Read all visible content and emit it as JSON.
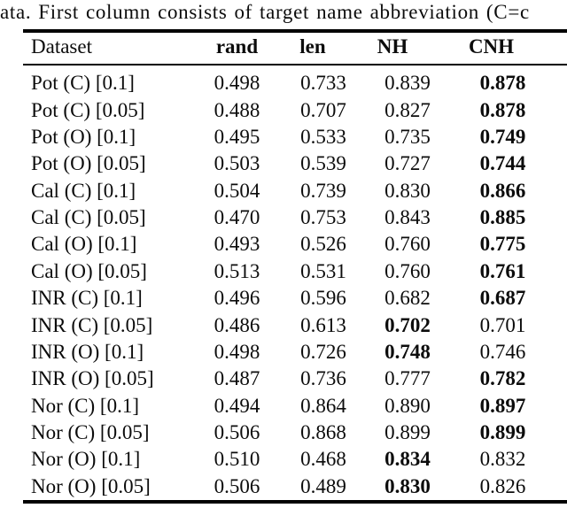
{
  "caption": "ata. First column consists of target name abbreviation (C=c",
  "columns": [
    {
      "key": "dataset",
      "label": "Dataset",
      "bold": false
    },
    {
      "key": "rand",
      "label": "rand",
      "bold": true
    },
    {
      "key": "len",
      "label": "len",
      "bold": true
    },
    {
      "key": "nh",
      "label": "NH",
      "bold": true
    },
    {
      "key": "cnh",
      "label": "CNH",
      "bold": true
    }
  ],
  "rows": [
    {
      "dataset": "Pot (C) [0.1]",
      "rand": "0.498",
      "len": "0.733",
      "nh": "0.839",
      "cnh": "0.878",
      "bold": "cnh"
    },
    {
      "dataset": "Pot (C) [0.05]",
      "rand": "0.488",
      "len": "0.707",
      "nh": "0.827",
      "cnh": "0.878",
      "bold": "cnh"
    },
    {
      "dataset": "Pot (O) [0.1]",
      "rand": "0.495",
      "len": "0.533",
      "nh": "0.735",
      "cnh": "0.749",
      "bold": "cnh"
    },
    {
      "dataset": "Pot (O) [0.05]",
      "rand": "0.503",
      "len": "0.539",
      "nh": "0.727",
      "cnh": "0.744",
      "bold": "cnh"
    },
    {
      "dataset": "Cal (C) [0.1]",
      "rand": "0.504",
      "len": "0.739",
      "nh": "0.830",
      "cnh": "0.866",
      "bold": "cnh"
    },
    {
      "dataset": "Cal (C) [0.05]",
      "rand": "0.470",
      "len": "0.753",
      "nh": "0.843",
      "cnh": "0.885",
      "bold": "cnh"
    },
    {
      "dataset": "Cal (O) [0.1]",
      "rand": "0.493",
      "len": "0.526",
      "nh": "0.760",
      "cnh": "0.775",
      "bold": "cnh"
    },
    {
      "dataset": "Cal (O) [0.05]",
      "rand": "0.513",
      "len": "0.531",
      "nh": "0.760",
      "cnh": "0.761",
      "bold": "cnh"
    },
    {
      "dataset": "INR (C) [0.1]",
      "rand": "0.496",
      "len": "0.596",
      "nh": "0.682",
      "cnh": "0.687",
      "bold": "cnh"
    },
    {
      "dataset": "INR (C) [0.05]",
      "rand": "0.486",
      "len": "0.613",
      "nh": "0.702",
      "cnh": "0.701",
      "bold": "nh"
    },
    {
      "dataset": "INR (O) [0.1]",
      "rand": "0.498",
      "len": "0.726",
      "nh": "0.748",
      "cnh": "0.746",
      "bold": "nh"
    },
    {
      "dataset": "INR (O) [0.05]",
      "rand": "0.487",
      "len": "0.736",
      "nh": "0.777",
      "cnh": "0.782",
      "bold": "cnh"
    },
    {
      "dataset": "Nor (C) [0.1]",
      "rand": "0.494",
      "len": "0.864",
      "nh": "0.890",
      "cnh": "0.897",
      "bold": "cnh"
    },
    {
      "dataset": "Nor (C) [0.05]",
      "rand": "0.506",
      "len": "0.868",
      "nh": "0.899",
      "cnh": "0.899",
      "bold": "cnh"
    },
    {
      "dataset": "Nor (O) [0.1]",
      "rand": "0.510",
      "len": "0.468",
      "nh": "0.834",
      "cnh": "0.832",
      "bold": "nh"
    },
    {
      "dataset": "Nor (O) [0.05]",
      "rand": "0.506",
      "len": "0.489",
      "nh": "0.830",
      "cnh": "0.826",
      "bold": "nh"
    }
  ],
  "colors": {
    "text": "#0c0c0c",
    "background": "#ffffff",
    "rule": "#000000"
  }
}
